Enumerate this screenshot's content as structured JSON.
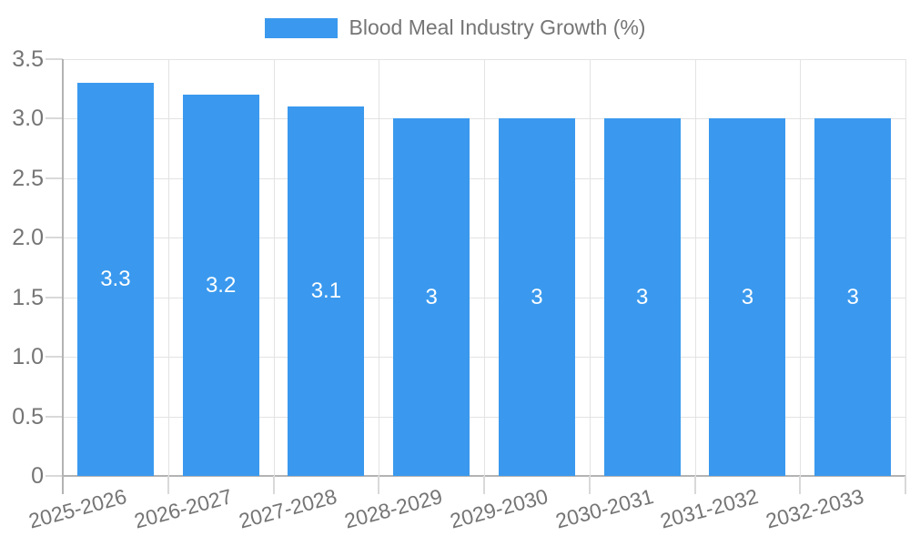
{
  "chart_data": {
    "type": "bar",
    "title": "Blood Meal Industry Growth (%)",
    "categories": [
      "2025-2026",
      "2026-2027",
      "2027-2028",
      "2028-2029",
      "2029-2030",
      "2030-2031",
      "2031-2032",
      "2032-2033"
    ],
    "values": [
      3.3,
      3.2,
      3.1,
      3,
      3,
      3,
      3,
      3
    ],
    "value_labels": [
      "3.3",
      "3.2",
      "3.1",
      "3",
      "3",
      "3",
      "3",
      "3"
    ],
    "xlabel": "",
    "ylabel": "",
    "ylim": [
      0,
      3.5
    ],
    "yticks": [
      0,
      0.5,
      1,
      1.5,
      2,
      2.5,
      3,
      3.5
    ],
    "ytick_labels": [
      "0",
      "0.5",
      "1.0",
      "1.5",
      "2.0",
      "2.5",
      "3.0",
      "3.5"
    ],
    "grid": true,
    "legend_position": "top",
    "bar_color": "#3a99ee",
    "value_label_color": "#ffffff",
    "text_color": "#757575",
    "gridline_color": "#e3e3e3",
    "axis_color": "#b3b3b3",
    "tick_color": "#d9d9d9"
  }
}
